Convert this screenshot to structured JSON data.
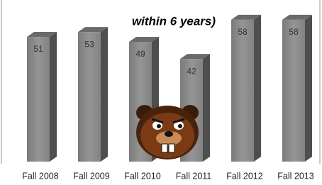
{
  "chart_data": {
    "type": "bar3d",
    "title": "within 6 years)",
    "categories": [
      "Fall 2008",
      "Fall 2009",
      "Fall 2010",
      "Fall 2011",
      "Fall 2012",
      "Fall 2013"
    ],
    "values": [
      51,
      53,
      49,
      42,
      58,
      58
    ],
    "color": "#8c8c8c"
  }
}
